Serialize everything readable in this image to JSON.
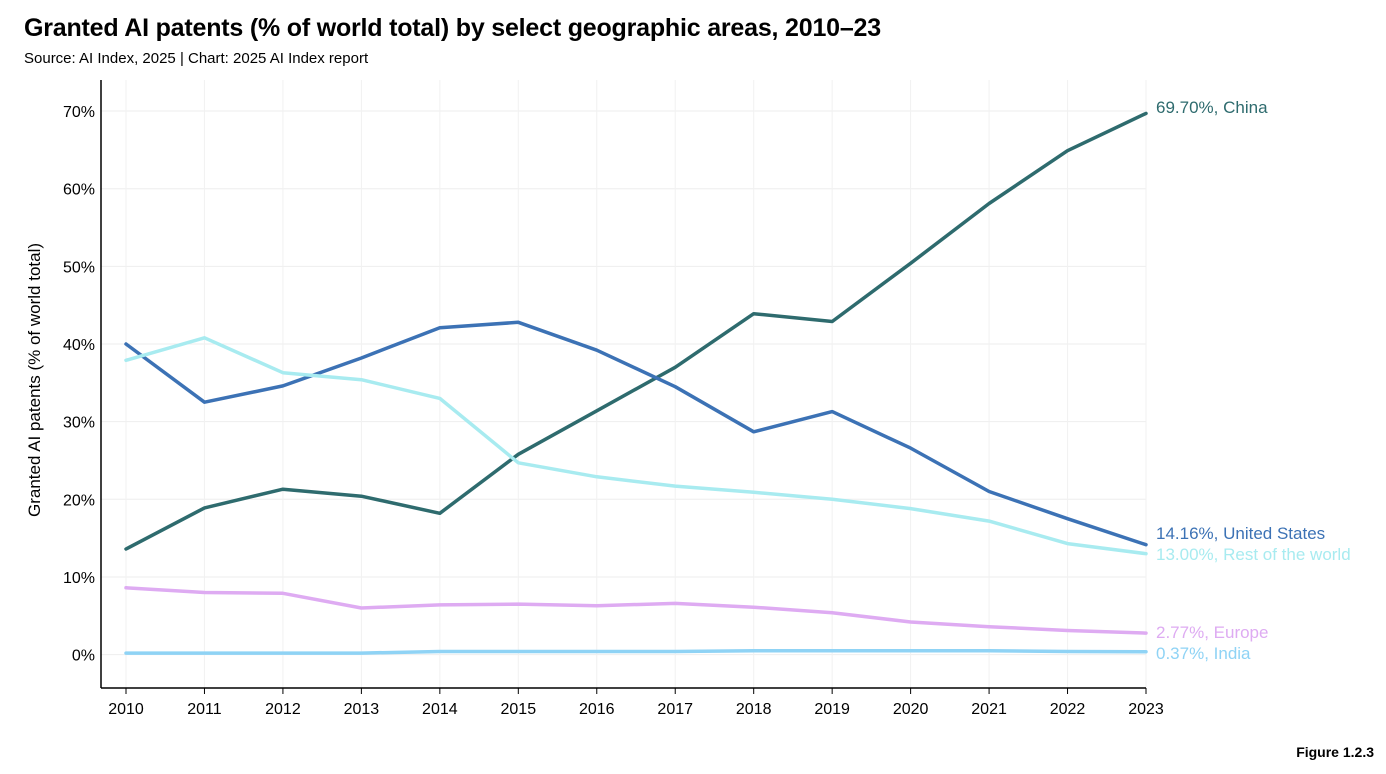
{
  "header": {
    "title": "Granted AI patents (% of world total) by select geographic areas, 2010–23",
    "subtitle": "Source: AI Index, 2025 | Chart: 2025 AI Index report"
  },
  "footer": {
    "figure": "Figure 1.2.3"
  },
  "chart_data": {
    "type": "line",
    "title": "Granted AI patents (% of world total) by select geographic areas, 2010–23",
    "xlabel": "",
    "ylabel": "Granted AI patents (% of world total)",
    "x": [
      2010,
      2011,
      2012,
      2013,
      2014,
      2015,
      2016,
      2017,
      2018,
      2019,
      2020,
      2021,
      2022,
      2023
    ],
    "xtick_labels": [
      "2010",
      "2011",
      "2012",
      "2013",
      "2014",
      "2015",
      "2016",
      "2017",
      "2018",
      "2019",
      "2020",
      "2021",
      "2022",
      "2023"
    ],
    "ylim": [
      -4.3,
      74
    ],
    "yticks": [
      0,
      10,
      20,
      30,
      40,
      50,
      60,
      70
    ],
    "ytick_labels": [
      "0%",
      "10%",
      "20%",
      "30%",
      "40%",
      "50%",
      "60%",
      "70%"
    ],
    "grid": true,
    "series": [
      {
        "name": "China",
        "color": "#2e6b6e",
        "values": [
          13.6,
          18.9,
          21.3,
          20.4,
          18.2,
          25.8,
          31.4,
          37.0,
          43.9,
          42.9,
          50.4,
          58.1,
          64.9,
          69.7
        ],
        "end_label": "69.70%, China"
      },
      {
        "name": "United States",
        "color": "#3c72b5",
        "values": [
          40.0,
          32.5,
          34.6,
          38.2,
          42.1,
          42.8,
          39.2,
          34.5,
          28.7,
          31.3,
          26.6,
          21.0,
          17.5,
          14.16
        ],
        "end_label": "14.16%, United States"
      },
      {
        "name": "Rest of the world",
        "color": "#a8ebf0",
        "values": [
          37.9,
          40.8,
          36.3,
          35.4,
          33.0,
          24.7,
          22.9,
          21.7,
          20.9,
          20.0,
          18.8,
          17.2,
          14.3,
          13.0
        ],
        "end_label": "13.00%, Rest of the world"
      },
      {
        "name": "Europe",
        "color": "#deabf2",
        "values": [
          8.6,
          8.0,
          7.9,
          6.0,
          6.4,
          6.5,
          6.3,
          6.6,
          6.1,
          5.4,
          4.2,
          3.6,
          3.1,
          2.77
        ],
        "end_label": "2.77%, Europe"
      },
      {
        "name": "India",
        "color": "#8fd3f5",
        "values": [
          0.2,
          0.2,
          0.2,
          0.2,
          0.4,
          0.4,
          0.4,
          0.4,
          0.5,
          0.5,
          0.5,
          0.5,
          0.4,
          0.37
        ],
        "end_label": "0.37%, India"
      }
    ]
  }
}
